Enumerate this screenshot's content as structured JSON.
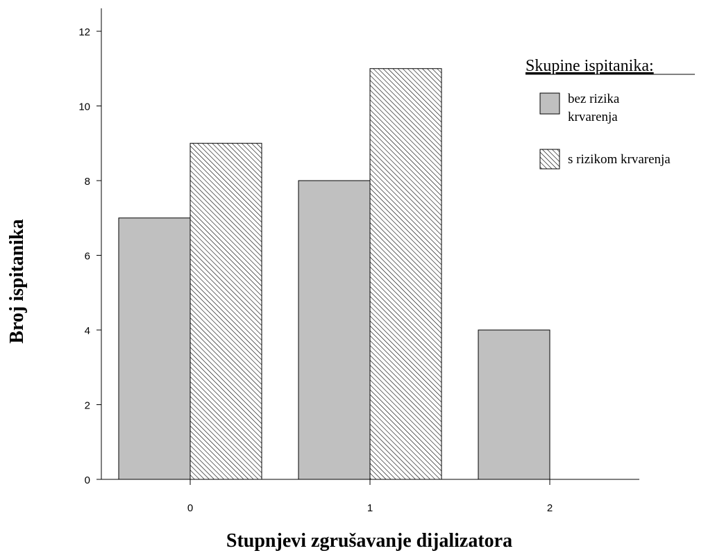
{
  "chart_data": {
    "type": "bar",
    "title": "",
    "xlabel": "Stupnjevi zgrušavanje dijalizatora",
    "ylabel": "Broj ispitanika",
    "categories": [
      "0",
      "1",
      "2"
    ],
    "series": [
      {
        "name": "bez rizika krvarenja",
        "legend_lines": [
          "bez rizika",
          "krvarenja"
        ],
        "values": [
          7,
          8,
          4
        ],
        "fill": "#c0c0c0",
        "pattern": "solid"
      },
      {
        "name": "s rizikom krvarenja",
        "legend_lines": [
          "s rizikom krvarenja"
        ],
        "values": [
          9,
          11,
          0
        ],
        "fill": "#ffffff",
        "pattern": "diagonal-hatch"
      }
    ],
    "ylim": [
      0,
      12
    ],
    "yticks": [
      0,
      2,
      4,
      6,
      8,
      10,
      12
    ],
    "grid": false,
    "legend": {
      "title": "Skupine ispitanika:",
      "position": "top-right"
    }
  }
}
